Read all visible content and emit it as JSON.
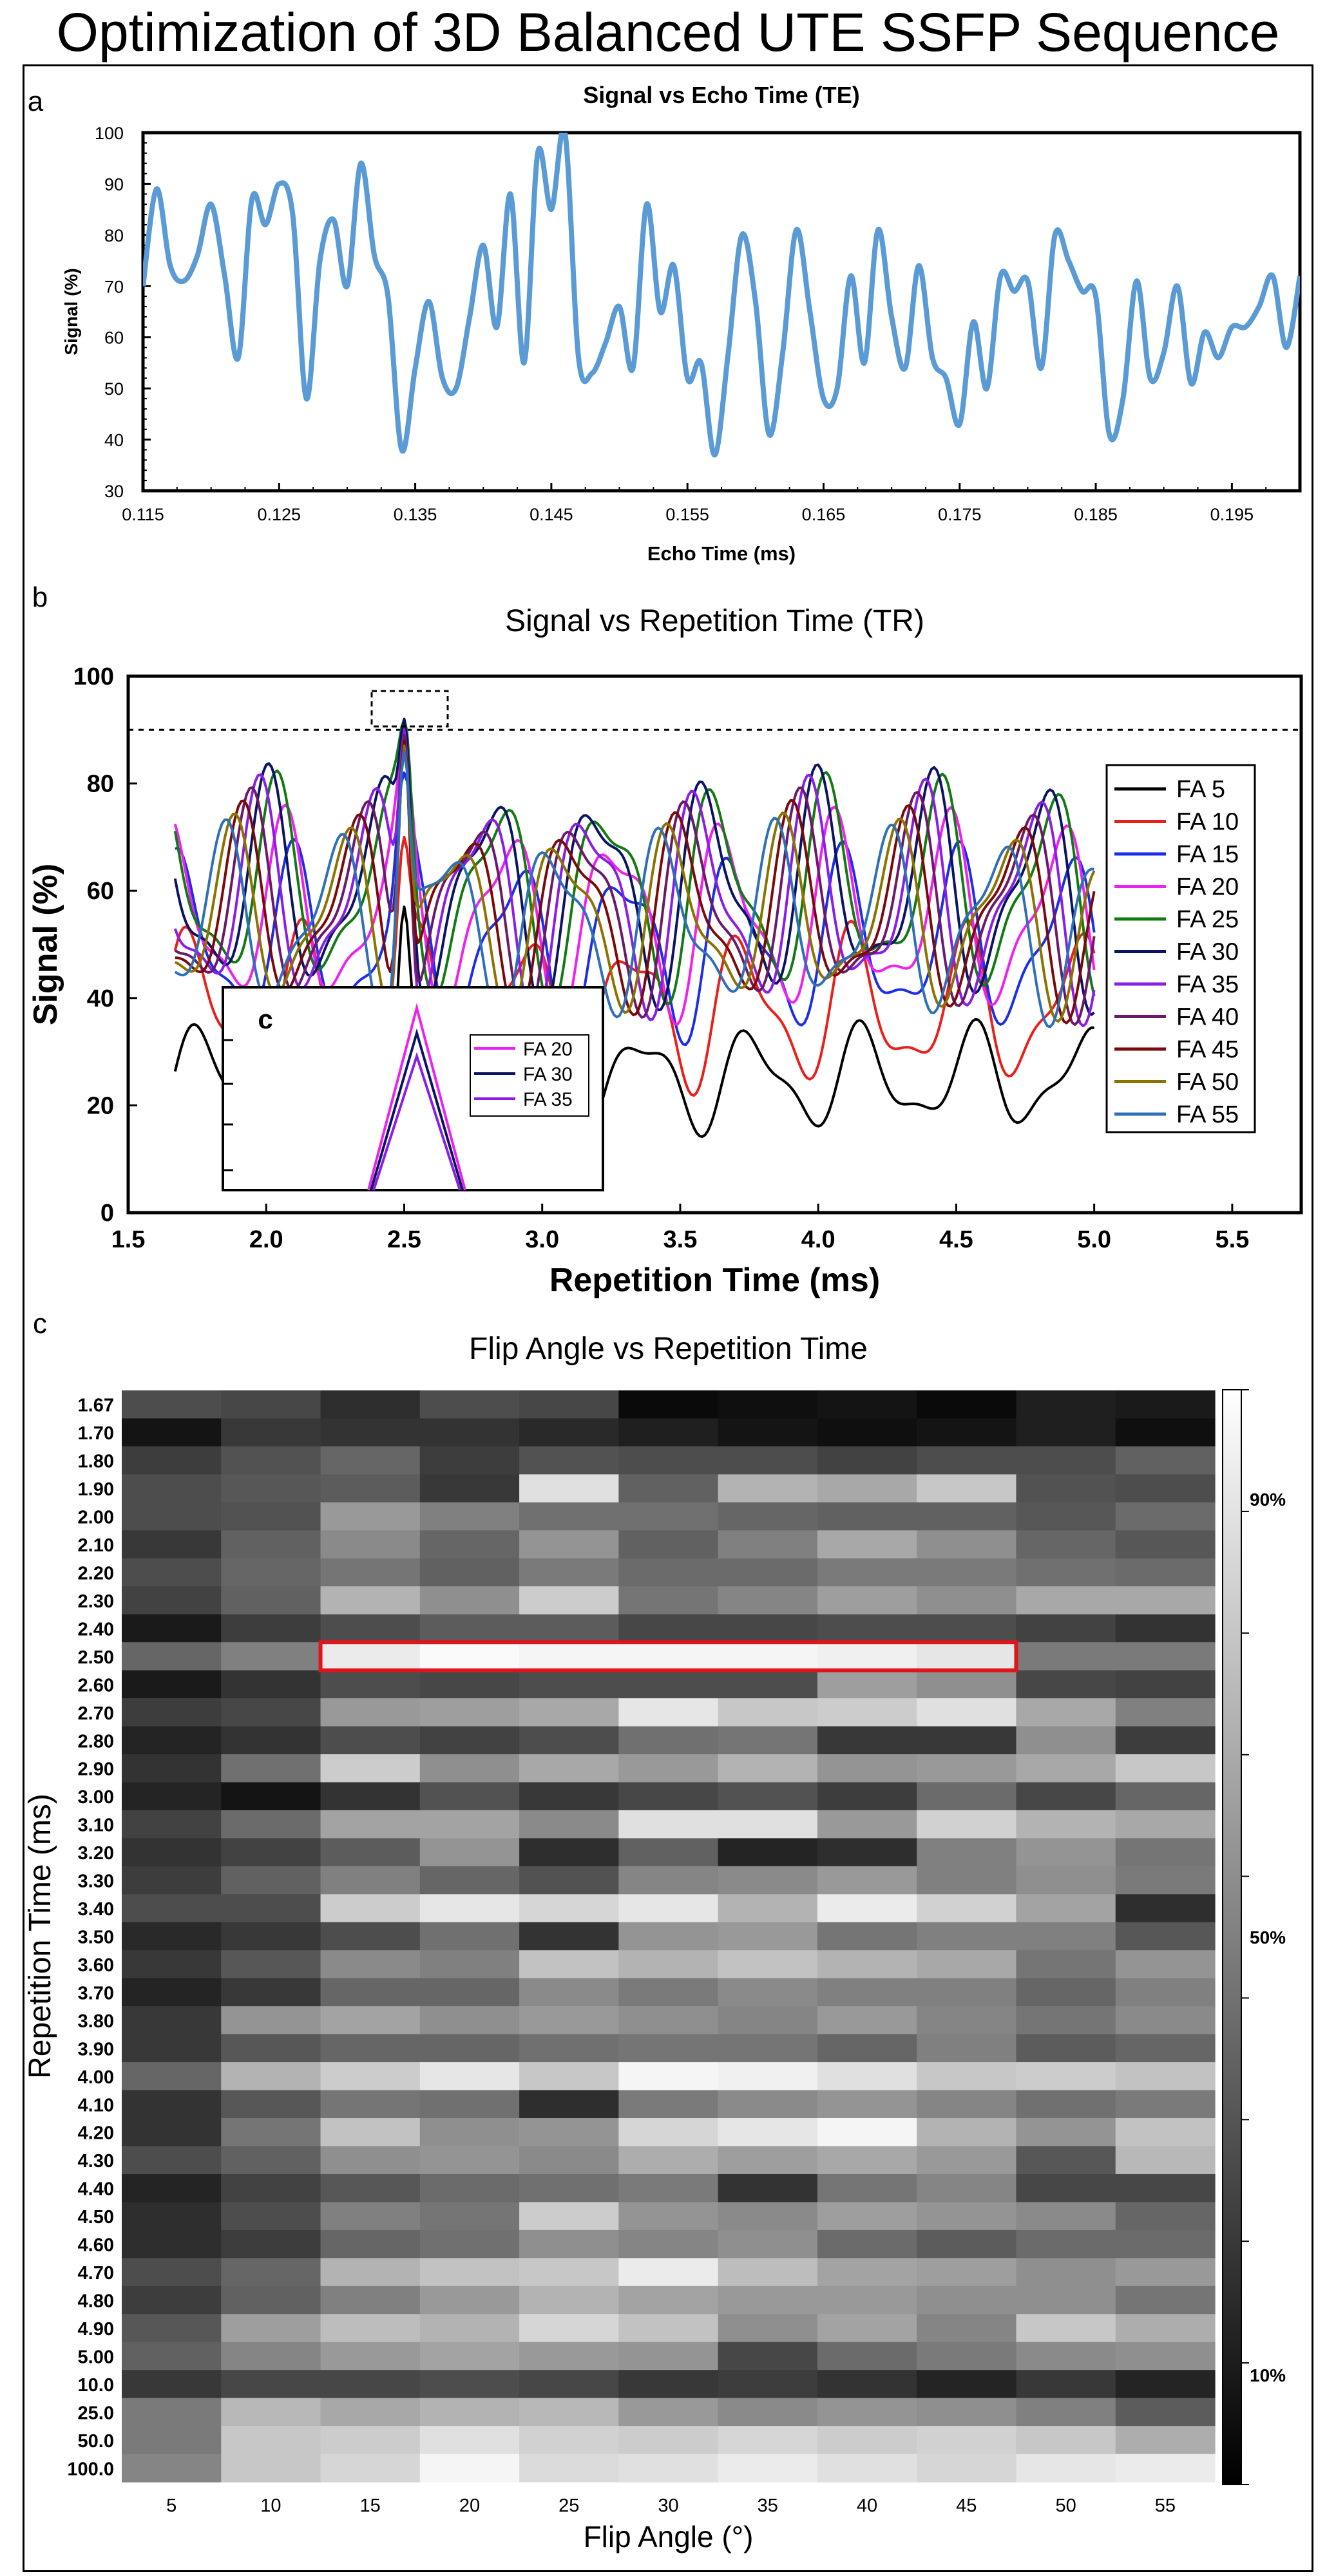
{
  "figure": {
    "title": "Optimization of 3D Balanced UTE SSFP Sequence"
  },
  "chart_data": [
    {
      "panel": "a",
      "type": "line",
      "title": "Signal vs Echo Time (TE)",
      "xlabel": "Echo Time (ms)",
      "ylabel": "Signal (%)",
      "xlim": [
        0.115,
        0.2
      ],
      "ylim": [
        30,
        100
      ],
      "xticks": [
        "0.115",
        "0.125",
        "0.135",
        "0.145",
        "0.155",
        "0.165",
        "0.175",
        "0.185",
        "0.195"
      ],
      "yticks": [
        "30",
        "40",
        "50",
        "60",
        "70",
        "80",
        "90",
        "100"
      ],
      "color": "#5b9bd5",
      "x": [
        0.115,
        0.116,
        0.117,
        0.118,
        0.119,
        0.12,
        0.121,
        0.122,
        0.123,
        0.124,
        0.125,
        0.126,
        0.127,
        0.128,
        0.129,
        0.13,
        0.131,
        0.132,
        0.133,
        0.134,
        0.135,
        0.136,
        0.137,
        0.138,
        0.139,
        0.14,
        0.141,
        0.142,
        0.143,
        0.144,
        0.145,
        0.146,
        0.147,
        0.148,
        0.149,
        0.15,
        0.151,
        0.152,
        0.153,
        0.154,
        0.155,
        0.156,
        0.157,
        0.158,
        0.159,
        0.16,
        0.161,
        0.162,
        0.163,
        0.164,
        0.165,
        0.166,
        0.167,
        0.168,
        0.169,
        0.17,
        0.171,
        0.172,
        0.173,
        0.174,
        0.175,
        0.176,
        0.177,
        0.178,
        0.179,
        0.18,
        0.181,
        0.182,
        0.183,
        0.184,
        0.185,
        0.186,
        0.187,
        0.188,
        0.189,
        0.19,
        0.191,
        0.192,
        0.193,
        0.194,
        0.195,
        0.196,
        0.197,
        0.198,
        0.199,
        0.2
      ],
      "y": [
        70,
        89,
        74,
        71,
        76,
        86,
        72,
        56,
        87,
        82,
        90,
        84,
        48,
        75,
        83,
        70,
        94,
        76,
        68,
        38,
        54,
        67,
        52,
        50,
        64,
        78,
        62,
        88,
        55,
        96,
        85,
        100,
        56,
        53,
        59,
        66,
        54,
        86,
        65,
        74,
        52,
        55,
        37,
        57,
        80,
        67,
        41,
        57,
        81,
        65,
        48,
        50,
        72,
        55,
        81,
        64,
        54,
        74,
        56,
        52,
        43,
        63,
        50,
        72,
        69,
        71,
        54,
        80,
        75,
        69,
        68,
        41,
        48,
        71,
        52,
        57,
        70,
        51,
        61,
        56,
        62,
        62,
        66,
        72,
        58,
        72
      ]
    },
    {
      "panel": "b",
      "type": "line",
      "title": "Signal vs Repetition Time (TR)",
      "xlabel": "Repetition Time (ms)",
      "ylabel": "Signal (%)",
      "xlim": [
        1.5,
        5.75
      ],
      "ylim": [
        0,
        100
      ],
      "xticks": [
        "1.5",
        "2.0",
        "2.5",
        "3.0",
        "3.5",
        "4.0",
        "4.5",
        "5.0",
        "5.5"
      ],
      "yticks": [
        "0",
        "20",
        "40",
        "60",
        "80",
        "100"
      ],
      "reference_line": 90,
      "series": [
        {
          "name": "FA 5",
          "color": "#000000",
          "base": 25,
          "amp": 8,
          "phase": 0.1
        },
        {
          "name": "FA 10",
          "color": "#e8201c",
          "base": 38,
          "amp": 12,
          "phase": 0.6
        },
        {
          "name": "FA 15",
          "color": "#1c2ee8",
          "base": 50,
          "amp": 14,
          "phase": 1.1
        },
        {
          "name": "FA 20",
          "color": "#ee22ee",
          "base": 55,
          "amp": 15,
          "phase": 1.6
        },
        {
          "name": "FA 25",
          "color": "#137a13",
          "base": 60,
          "amp": 16,
          "phase": 2.1
        },
        {
          "name": "FA 30",
          "color": "#0b1460",
          "base": 60,
          "amp": 17,
          "phase": 2.6
        },
        {
          "name": "FA 35",
          "color": "#8a1ee6",
          "base": 58,
          "amp": 17,
          "phase": 3.1
        },
        {
          "name": "FA 40",
          "color": "#6b1a6b",
          "base": 57,
          "amp": 16,
          "phase": 3.6
        },
        {
          "name": "FA 45",
          "color": "#7a0a0a",
          "base": 56,
          "amp": 15,
          "phase": 4.1
        },
        {
          "name": "FA 50",
          "color": "#8a7300",
          "base": 55,
          "amp": 14,
          "phase": 4.6
        },
        {
          "name": "FA 55",
          "color": "#2e6fb8",
          "base": 54,
          "amp": 14,
          "phase": 5.1
        }
      ],
      "inset": {
        "label": "c",
        "series": [
          {
            "name": "FA 20",
            "color": "#ee22ee"
          },
          {
            "name": "FA 30",
            "color": "#0b1460"
          },
          {
            "name": "FA 35",
            "color": "#8a1ee6"
          }
        ]
      }
    },
    {
      "panel": "c",
      "type": "heatmap",
      "title": "Flip Angle vs Repetition Time",
      "xlabel": "Flip Angle (°)",
      "ylabel": "Repetition Time (ms)",
      "x_categories": [
        "5",
        "10",
        "15",
        "20",
        "25",
        "30",
        "35",
        "40",
        "45",
        "50",
        "55"
      ],
      "y_categories": [
        "1.67",
        "1.70",
        "1.80",
        "1.90",
        "2.00",
        "2.10",
        "2.20",
        "2.30",
        "2.40",
        "2.50",
        "2.60",
        "2.70",
        "2.80",
        "2.90",
        "3.00",
        "3.10",
        "3.20",
        "3.30",
        "3.40",
        "3.50",
        "3.60",
        "3.70",
        "3.80",
        "3.90",
        "4.00",
        "4.10",
        "4.20",
        "4.30",
        "4.40",
        "4.50",
        "4.60",
        "4.70",
        "4.80",
        "4.90",
        "5.00",
        "10.0",
        "25.0",
        "50.0",
        "100.0"
      ],
      "colorbar_ticks": [
        "90%",
        "50%",
        "10%"
      ],
      "colorbar_range": [
        0,
        100
      ],
      "highlight": {
        "row": "2.50",
        "from_col": "15",
        "to_col": "45"
      },
      "values": [
        [
          30,
          28,
          18,
          30,
          28,
          4,
          6,
          8,
          4,
          12,
          10
        ],
        [
          8,
          22,
          20,
          20,
          16,
          12,
          8,
          6,
          8,
          12,
          6
        ],
        [
          24,
          32,
          40,
          24,
          32,
          30,
          30,
          26,
          30,
          30,
          38
        ],
        [
          30,
          34,
          36,
          22,
          88,
          38,
          70,
          66,
          78,
          32,
          30
        ],
        [
          30,
          32,
          60,
          50,
          44,
          44,
          40,
          38,
          38,
          34,
          42
        ],
        [
          22,
          38,
          54,
          40,
          58,
          38,
          50,
          66,
          56,
          40,
          34
        ],
        [
          30,
          40,
          46,
          38,
          48,
          42,
          42,
          48,
          48,
          44,
          42
        ],
        [
          26,
          38,
          70,
          56,
          80,
          46,
          52,
          62,
          56,
          66,
          66
        ],
        [
          10,
          24,
          30,
          36,
          36,
          28,
          28,
          30,
          30,
          26,
          20
        ],
        [
          40,
          50,
          92,
          98,
          96,
          96,
          96,
          94,
          90,
          48,
          48
        ],
        [
          10,
          20,
          30,
          28,
          30,
          30,
          30,
          62,
          56,
          28,
          26
        ],
        [
          24,
          28,
          60,
          62,
          66,
          90,
          78,
          80,
          88,
          66,
          50
        ],
        [
          14,
          20,
          30,
          26,
          30,
          44,
          46,
          22,
          22,
          56,
          24
        ],
        [
          20,
          44,
          80,
          56,
          66,
          60,
          70,
          58,
          60,
          66,
          78
        ],
        [
          14,
          8,
          20,
          32,
          22,
          28,
          32,
          24,
          42,
          28,
          40
        ],
        [
          26,
          42,
          64,
          64,
          54,
          88,
          88,
          60,
          82,
          70,
          66
        ],
        [
          20,
          26,
          36,
          58,
          18,
          38,
          14,
          18,
          50,
          58,
          46
        ],
        [
          24,
          38,
          50,
          40,
          32,
          52,
          54,
          60,
          50,
          56,
          48
        ],
        [
          30,
          30,
          80,
          90,
          84,
          90,
          70,
          92,
          82,
          64,
          18
        ],
        [
          16,
          22,
          30,
          44,
          20,
          58,
          60,
          46,
          50,
          50,
          34
        ],
        [
          22,
          34,
          54,
          50,
          76,
          70,
          76,
          70,
          66,
          46,
          58
        ],
        [
          14,
          22,
          40,
          40,
          54,
          48,
          54,
          50,
          50,
          40,
          50
        ],
        [
          22,
          58,
          64,
          56,
          60,
          56,
          52,
          60,
          52,
          46,
          54
        ],
        [
          22,
          34,
          40,
          40,
          44,
          46,
          46,
          40,
          50,
          36,
          40
        ],
        [
          40,
          70,
          80,
          90,
          78,
          96,
          94,
          88,
          78,
          80,
          76
        ],
        [
          20,
          34,
          46,
          44,
          18,
          48,
          54,
          58,
          52,
          44,
          48
        ],
        [
          20,
          46,
          76,
          56,
          58,
          84,
          90,
          96,
          70,
          58,
          76
        ],
        [
          30,
          38,
          56,
          58,
          54,
          68,
          62,
          66,
          60,
          34,
          72
        ],
        [
          14,
          26,
          34,
          42,
          44,
          48,
          20,
          46,
          52,
          28,
          28
        ],
        [
          18,
          30,
          50,
          46,
          80,
          58,
          54,
          62,
          58,
          54,
          40
        ],
        [
          18,
          24,
          40,
          44,
          56,
          52,
          56,
          42,
          36,
          42,
          42
        ],
        [
          30,
          40,
          70,
          76,
          78,
          92,
          74,
          64,
          62,
          56,
          60
        ],
        [
          24,
          38,
          50,
          60,
          70,
          64,
          60,
          60,
          56,
          56,
          46
        ],
        [
          34,
          62,
          74,
          70,
          84,
          76,
          56,
          64,
          52,
          78,
          68
        ],
        [
          38,
          52,
          60,
          64,
          60,
          58,
          28,
          42,
          48,
          54,
          56
        ],
        [
          22,
          28,
          28,
          30,
          28,
          22,
          24,
          20,
          14,
          22,
          14
        ],
        [
          48,
          72,
          66,
          70,
          72,
          60,
          54,
          58,
          56,
          50,
          36
        ],
        [
          48,
          78,
          80,
          88,
          82,
          80,
          84,
          80,
          82,
          78,
          68
        ],
        [
          52,
          78,
          84,
          96,
          86,
          88,
          92,
          88,
          84,
          90,
          92
        ]
      ]
    }
  ]
}
